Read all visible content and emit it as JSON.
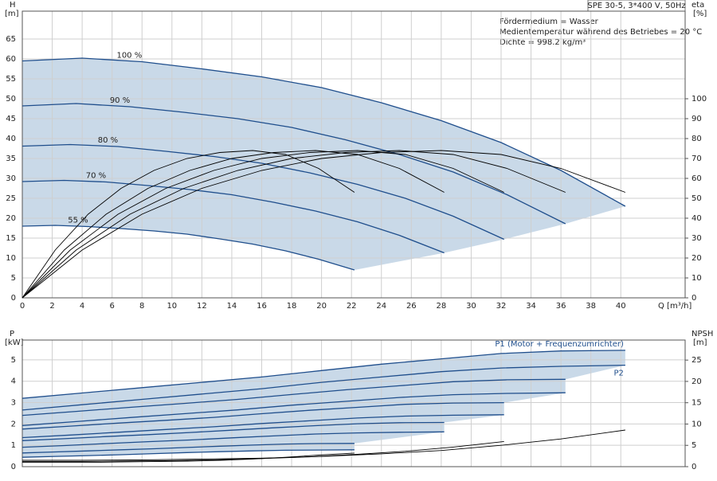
{
  "header": {
    "model": "SPE 30-5, 3*400 V, 50Hz",
    "notes": [
      "Fördermedium = Wasser",
      "Medientemperatur während des Betriebes = 20 °C",
      "Dichte = 998.2 kg/m³"
    ]
  },
  "chart_data": [
    {
      "type": "line",
      "y_label": "H",
      "y_unit": "[m]",
      "y2_label": "eta",
      "y2_unit": "[%]",
      "x_label": "Q [m³/h]",
      "xlim": [
        0,
        44.3
      ],
      "xticks": [
        0,
        2,
        4,
        6,
        8,
        10,
        12,
        14,
        16,
        18,
        20,
        22,
        24,
        26,
        28,
        30,
        32,
        34,
        36,
        38,
        40
      ],
      "ylim": [
        0,
        72
      ],
      "yticks": [
        0,
        5,
        10,
        15,
        20,
        25,
        30,
        35,
        40,
        45,
        50,
        55,
        60,
        65
      ],
      "y2lim": [
        0,
        144
      ],
      "y2ticks": [
        0,
        10,
        20,
        30,
        40,
        50,
        60,
        70,
        80,
        90,
        100
      ],
      "grid": true,
      "series": [
        {
          "name": "100 %",
          "color": "#1f4e8c",
          "x": [
            0,
            4,
            8,
            12,
            16,
            20,
            24,
            28,
            32,
            36,
            40.3
          ],
          "values": [
            59.5,
            60.2,
            59.3,
            57.5,
            55.5,
            52.8,
            49,
            44.5,
            39,
            32,
            23
          ]
        },
        {
          "name": "90 %",
          "color": "#1f4e8c",
          "x": [
            0,
            3.6,
            7.2,
            10.8,
            14.4,
            18,
            21.6,
            25.2,
            28.8,
            32.4,
            36.3
          ],
          "values": [
            48.2,
            48.8,
            48,
            46.6,
            45,
            42.8,
            39.7,
            36,
            31.6,
            25.9,
            18.6
          ]
        },
        {
          "name": "80 %",
          "color": "#1f4e8c",
          "x": [
            0,
            3.2,
            6.4,
            9.6,
            12.8,
            16,
            19.2,
            22.4,
            25.6,
            28.8,
            32.2
          ],
          "values": [
            38.1,
            38.5,
            38,
            36.8,
            35.5,
            33.8,
            31.4,
            28.5,
            25,
            20.5,
            14.7
          ]
        },
        {
          "name": "70 %",
          "color": "#1f4e8c",
          "x": [
            0,
            2.8,
            5.6,
            8.4,
            11.2,
            14,
            16.8,
            19.6,
            22.4,
            25.2,
            28.2
          ],
          "values": [
            29.2,
            29.5,
            29.1,
            28.2,
            27.2,
            25.9,
            24,
            21.8,
            19.1,
            15.7,
            11.3
          ]
        },
        {
          "name": "55 %",
          "color": "#1f4e8c",
          "x": [
            0,
            2.2,
            4.4,
            6.6,
            8.8,
            11,
            13.2,
            15.4,
            17.6,
            19.8,
            22.2
          ],
          "values": [
            18,
            18.2,
            17.9,
            17.4,
            16.8,
            16,
            14.8,
            13.5,
            11.8,
            9.7,
            7
          ]
        },
        {
          "axis": "y2",
          "color": "#000000",
          "x": [
            0,
            4,
            8,
            12,
            16,
            20,
            24,
            28,
            32,
            36,
            40.3
          ],
          "values": [
            0,
            24,
            42,
            55,
            64,
            70,
            73,
            74,
            72,
            65,
            53
          ]
        },
        {
          "axis": "y2",
          "color": "#000000",
          "x": [
            0,
            3.6,
            7.2,
            10.8,
            14.4,
            18,
            21.6,
            25.2,
            28.8,
            32.4,
            36.3
          ],
          "values": [
            0,
            24,
            42,
            55,
            64,
            70,
            73,
            74,
            72,
            65,
            53
          ]
        },
        {
          "axis": "y2",
          "color": "#000000",
          "x": [
            0,
            3.2,
            6.4,
            9.6,
            12.8,
            16,
            19.2,
            22.4,
            25.6,
            28.8,
            32.2
          ],
          "values": [
            0,
            24,
            42,
            55,
            64,
            70,
            73,
            74,
            72,
            65,
            53
          ]
        },
        {
          "axis": "y2",
          "color": "#000000",
          "x": [
            0,
            2.8,
            5.6,
            8.4,
            11.2,
            14,
            16.8,
            19.6,
            22.4,
            25.2,
            28.2
          ],
          "values": [
            0,
            24,
            42,
            55,
            64,
            70,
            73,
            74,
            72,
            65,
            53
          ]
        },
        {
          "axis": "y2",
          "color": "#000000",
          "x": [
            0,
            2.2,
            4.4,
            6.6,
            8.8,
            11,
            13.2,
            15.4,
            17.6,
            19.8,
            22.2
          ],
          "values": [
            0,
            24,
            42,
            55,
            64,
            70,
            73,
            74,
            72,
            65,
            53
          ]
        }
      ]
    },
    {
      "type": "line",
      "y_label": "P",
      "y_unit": "[kW]",
      "y2_label": "NPSH",
      "y2_unit": "[m]",
      "xlim": [
        0,
        44.3
      ],
      "ylim": [
        0,
        5.93
      ],
      "yticks": [
        0,
        1,
        2,
        3,
        4,
        5
      ],
      "y2lim": [
        0,
        29.7
      ],
      "y2ticks": [
        0,
        5,
        10,
        15,
        20,
        25
      ],
      "grid": true,
      "series": [
        {
          "name": "P1 (Motor + Frequenzumrichter)",
          "color": "#1f4e8c",
          "x": [
            0,
            4,
            8,
            12,
            16,
            20,
            24,
            28,
            32,
            36,
            40.3
          ],
          "values": [
            3.2,
            3.45,
            3.7,
            3.95,
            4.2,
            4.5,
            4.8,
            5.05,
            5.3,
            5.42,
            5.45
          ]
        },
        {
          "name": "P2",
          "color": "#1f4e8c",
          "x": [
            0,
            4,
            8,
            12,
            16,
            20,
            24,
            28,
            32,
            36,
            40.3
          ],
          "values": [
            2.65,
            2.9,
            3.15,
            3.4,
            3.65,
            3.95,
            4.2,
            4.45,
            4.62,
            4.7,
            4.75
          ]
        },
        {
          "color": "#1f4e8c",
          "x": [
            0,
            3.6,
            7.2,
            10.8,
            14.4,
            18,
            21.6,
            25.2,
            28.8,
            32.4,
            36.3
          ],
          "values": [
            2.4,
            2.59,
            2.78,
            2.96,
            3.15,
            3.38,
            3.6,
            3.79,
            3.98,
            4.07,
            4.09
          ]
        },
        {
          "color": "#1f4e8c",
          "x": [
            0,
            3.6,
            7.2,
            10.8,
            14.4,
            18,
            21.6,
            25.2,
            28.8,
            32.4,
            36.3
          ],
          "values": [
            1.93,
            2.11,
            2.3,
            2.48,
            2.66,
            2.88,
            3.06,
            3.24,
            3.37,
            3.43,
            3.46
          ]
        },
        {
          "color": "#1f4e8c",
          "x": [
            0,
            3.2,
            6.4,
            9.6,
            12.8,
            16,
            19.2,
            22.4,
            25.6,
            28.8,
            32.2
          ],
          "values": [
            1.76,
            1.9,
            2.04,
            2.17,
            2.31,
            2.48,
            2.64,
            2.78,
            2.92,
            2.98,
            3.0
          ]
        },
        {
          "color": "#1f4e8c",
          "x": [
            0,
            3.2,
            6.4,
            9.6,
            12.8,
            16,
            19.2,
            22.4,
            25.6,
            28.8,
            32.2
          ],
          "values": [
            1.36,
            1.48,
            1.61,
            1.74,
            1.87,
            2.02,
            2.15,
            2.28,
            2.37,
            2.41,
            2.43
          ]
        },
        {
          "color": "#1f4e8c",
          "x": [
            0,
            2.8,
            5.6,
            8.4,
            11.2,
            14,
            16.8,
            19.6,
            22.4,
            25.2,
            28.2
          ],
          "values": [
            1.22,
            1.31,
            1.41,
            1.5,
            1.6,
            1.71,
            1.82,
            1.92,
            2.01,
            2.06,
            2.07
          ]
        },
        {
          "color": "#1f4e8c",
          "x": [
            0,
            2.8,
            5.6,
            8.4,
            11.2,
            14,
            16.8,
            19.6,
            22.4,
            25.2,
            28.2
          ],
          "values": [
            0.91,
            0.99,
            1.08,
            1.17,
            1.25,
            1.35,
            1.44,
            1.53,
            1.58,
            1.61,
            1.63
          ]
        },
        {
          "color": "#1f4e8c",
          "x": [
            0,
            2.2,
            4.4,
            6.6,
            8.8,
            11,
            13.2,
            15.4,
            17.6,
            19.8,
            22.2
          ],
          "values": [
            0.64,
            0.69,
            0.74,
            0.79,
            0.84,
            0.9,
            0.96,
            1.01,
            1.06,
            1.08,
            1.09
          ]
        },
        {
          "color": "#1f4e8c",
          "x": [
            0,
            2.2,
            4.4,
            6.6,
            8.8,
            11,
            13.2,
            15.4,
            17.6,
            19.8,
            22.2
          ],
          "values": [
            0.44,
            0.48,
            0.52,
            0.56,
            0.61,
            0.66,
            0.7,
            0.74,
            0.77,
            0.78,
            0.79
          ]
        },
        {
          "axis": "y2",
          "color": "#000000",
          "x": [
            0,
            4,
            8,
            12,
            16,
            20,
            24,
            28,
            32,
            36,
            40.3
          ],
          "values": [
            1.5,
            1.5,
            1.6,
            1.8,
            2,
            2.4,
            3,
            3.8,
            5,
            6.5,
            8.6
          ]
        },
        {
          "axis": "y2",
          "color": "#000000",
          "x": [
            0,
            3.2,
            6.4,
            9.6,
            12.8,
            16,
            19.2,
            22.4,
            25.6,
            28.8,
            32.2
          ],
          "values": [
            1.2,
            1.2,
            1.3,
            1.4,
            1.6,
            1.9,
            2.3,
            2.9,
            3.6,
            4.6,
            5.9
          ]
        },
        {
          "axis": "y2",
          "color": "#000000",
          "x": [
            0,
            2.2,
            4.4,
            6.6,
            8.8,
            11,
            13.2,
            15.4,
            17.6,
            19.8,
            22.2
          ],
          "values": [
            1,
            1,
            1,
            1.1,
            1.2,
            1.3,
            1.5,
            1.8,
            2.2,
            2.7,
            3.2
          ]
        }
      ]
    }
  ]
}
